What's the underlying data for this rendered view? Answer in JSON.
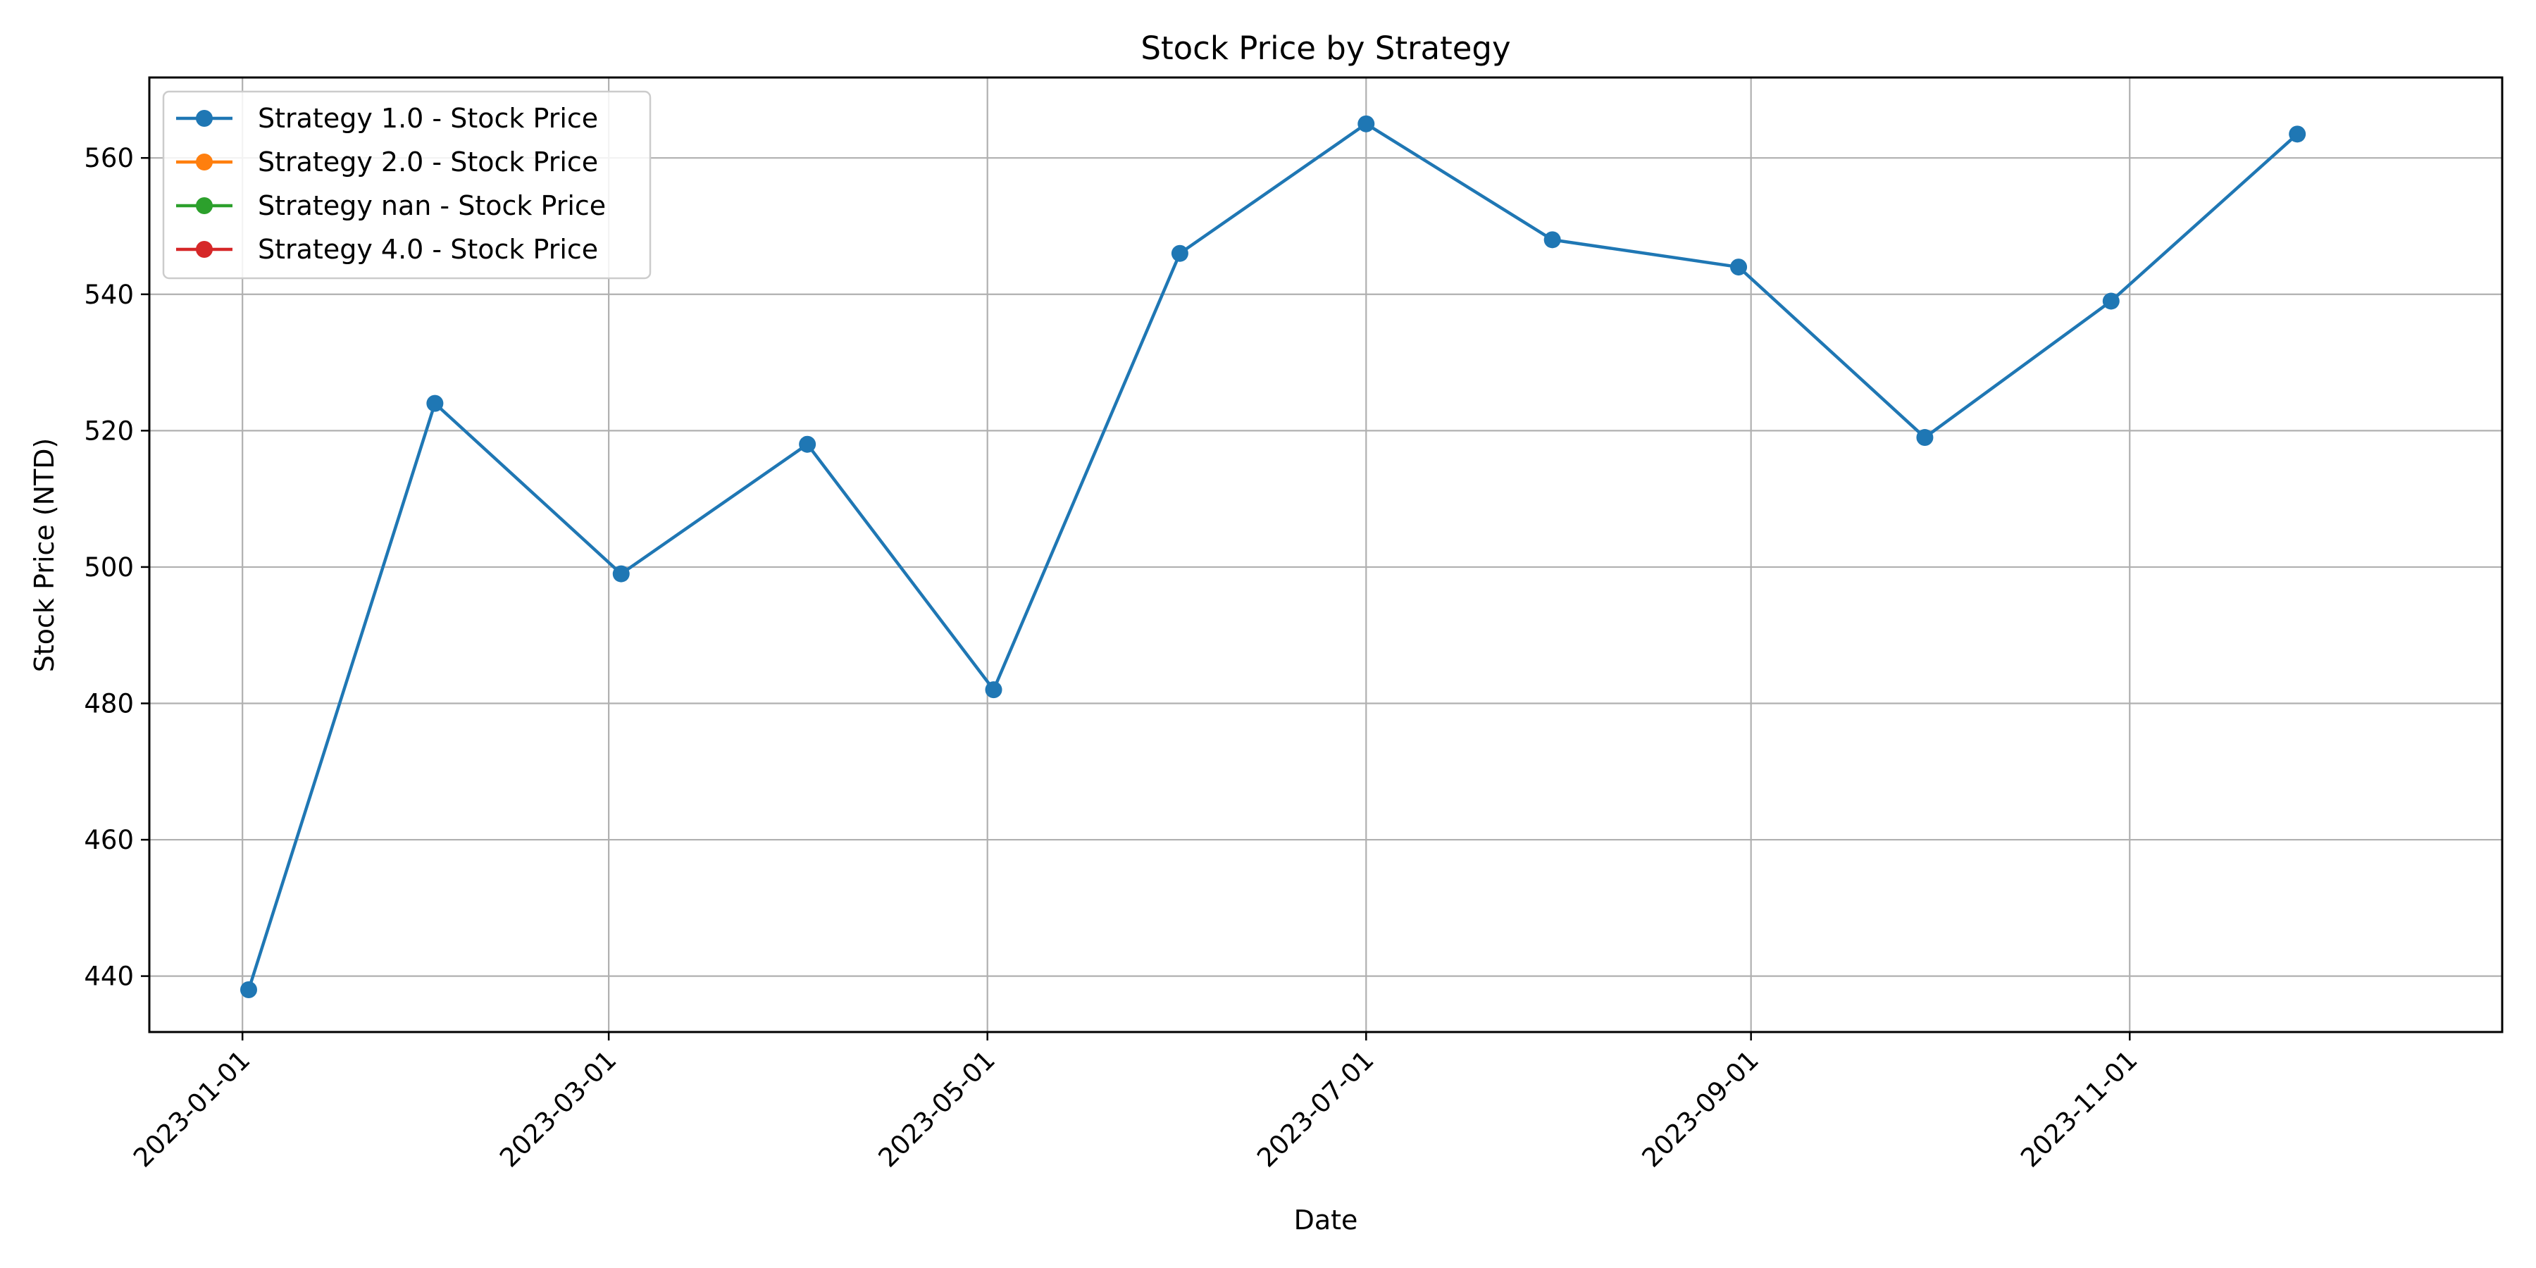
{
  "chart_data": {
    "type": "line",
    "title": "Stock Price by Strategy",
    "xlabel": "Date",
    "ylabel": "Stock Price (NTD)",
    "x_ticks": [
      "2023-01-01",
      "2023-03-01",
      "2023-05-01",
      "2023-07-01",
      "2023-09-01",
      "2023-11-01"
    ],
    "y_ticks": [
      440,
      460,
      480,
      500,
      520,
      540,
      560
    ],
    "xlim": [
      "2022-12-17",
      "2023-12-31"
    ],
    "ylim": [
      431.8,
      571.8
    ],
    "grid": true,
    "legend_position": "top-left",
    "series": [
      {
        "name": "Strategy 1.0 - Stock Price",
        "color": "#1f77b4",
        "x": [
          "2023-01-02",
          "2023-02-01",
          "2023-03-03",
          "2023-04-02",
          "2023-05-02",
          "2023-06-01",
          "2023-07-01",
          "2023-07-31",
          "2023-08-30",
          "2023-09-29",
          "2023-10-29",
          "2023-11-28"
        ],
        "values": [
          438,
          524,
          499,
          518,
          482,
          546,
          565,
          548,
          544,
          519,
          539,
          563.5
        ]
      },
      {
        "name": "Strategy 2.0 - Stock Price",
        "color": "#ff7f0e",
        "x": [],
        "values": []
      },
      {
        "name": "Strategy nan - Stock Price",
        "color": "#2ca02c",
        "x": [],
        "values": []
      },
      {
        "name": "Strategy 4.0 - Stock Price",
        "color": "#d62728",
        "x": [],
        "values": []
      }
    ]
  }
}
